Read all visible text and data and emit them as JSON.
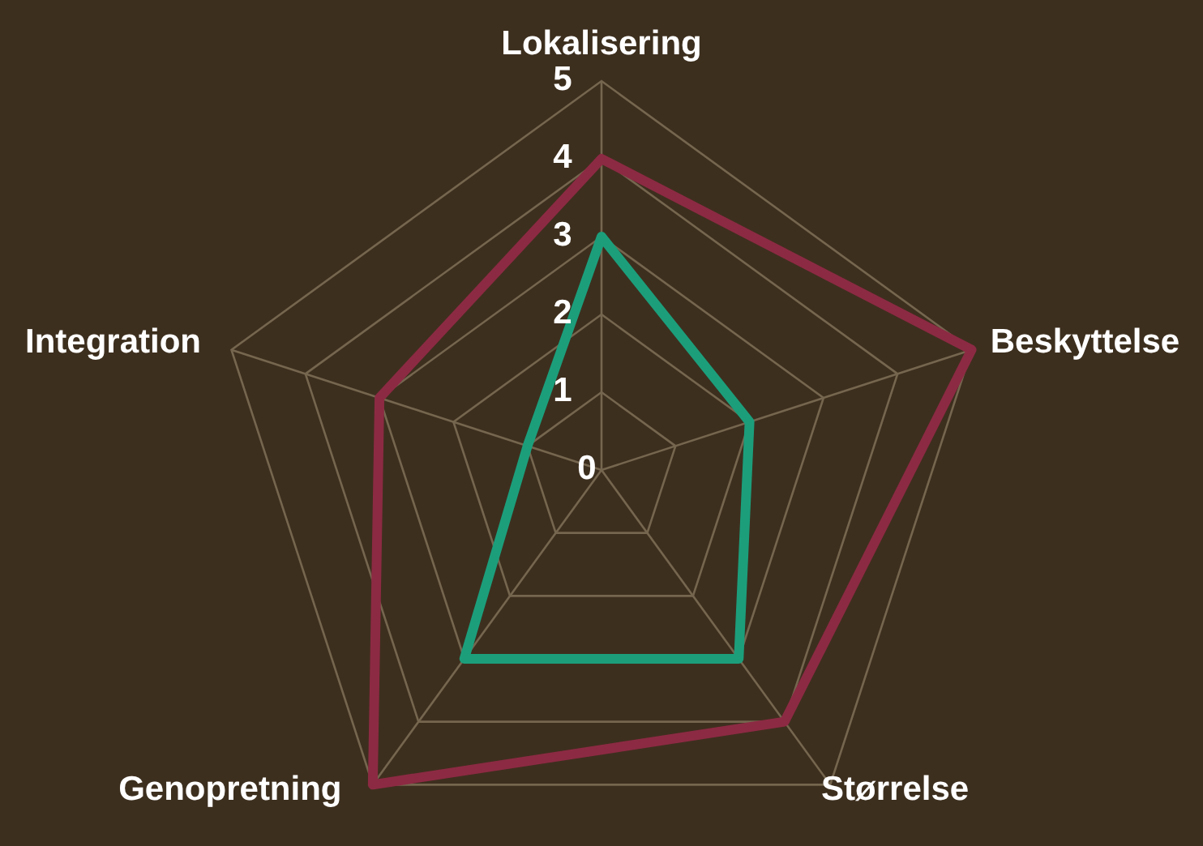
{
  "chart_data": {
    "type": "radar",
    "categories": [
      "Lokalisering",
      "Beskyttelse",
      "Størrelse",
      "Genopretning",
      "Integration"
    ],
    "ylim": [
      0,
      5
    ],
    "yticks": [
      0,
      1,
      2,
      3,
      4,
      5
    ],
    "grid": true,
    "marker": "none",
    "series": [
      {
        "color": "#8c2a43",
        "values": [
          4,
          5,
          4,
          5,
          3
        ]
      },
      {
        "color": "#1c9e7b",
        "values": [
          3,
          2,
          3,
          3,
          1
        ]
      }
    ]
  }
}
